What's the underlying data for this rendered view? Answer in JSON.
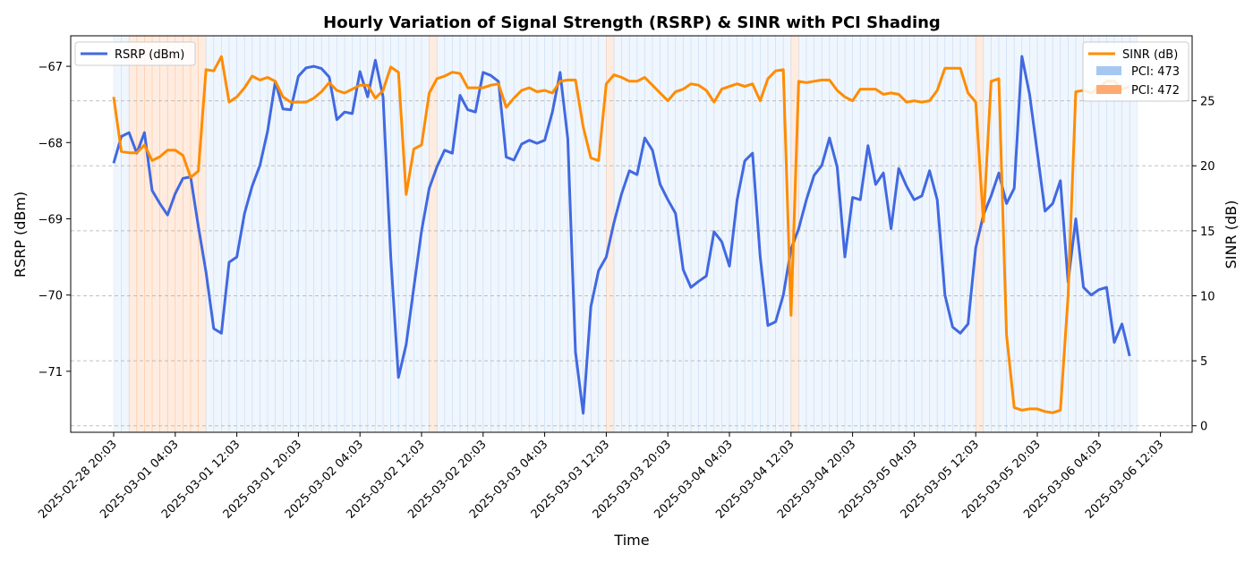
{
  "chart_data": {
    "type": "line",
    "title": "Hourly Variation of Signal Strength (RSRP) & SINR with PCI Shading",
    "xlabel": "Time",
    "ylabel_left": "RSRP (dBm)",
    "ylabel_right": "SINR (dB)",
    "x_start": "2025-02-28 20:03",
    "x_step_hours": 1,
    "x_ticks": [
      "2025-02-28 20:03",
      "2025-03-01 04:03",
      "2025-03-01 12:03",
      "2025-03-01 20:03",
      "2025-03-02 04:03",
      "2025-03-02 12:03",
      "2025-03-02 20:03",
      "2025-03-03 04:03",
      "2025-03-03 12:03",
      "2025-03-03 20:03",
      "2025-03-04 04:03",
      "2025-03-04 12:03",
      "2025-03-04 20:03",
      "2025-03-05 04:03",
      "2025-03-05 12:03",
      "2025-03-05 20:03",
      "2025-03-06 04:03",
      "2025-03-06 12:03"
    ],
    "ylim_left": [
      -71.8,
      -66.6
    ],
    "yticks_left": [
      -71,
      -70,
      -69,
      -68,
      -67
    ],
    "ylim_right": [
      -0.5,
      30
    ],
    "yticks_right": [
      0,
      5,
      10,
      15,
      20,
      25
    ],
    "grid": "horizontal dashed",
    "legend_left": "top-left",
    "legend_right": "top-right",
    "series": [
      {
        "name": "RSRP (dBm)",
        "axis": "left",
        "color": "#4169e1",
        "values": [
          -68.27,
          -67.92,
          -67.87,
          -68.14,
          -67.87,
          -68.63,
          -68.8,
          -68.95,
          -68.67,
          -68.47,
          -68.45,
          -69.1,
          -69.7,
          -70.44,
          -70.5,
          -69.57,
          -69.5,
          -68.93,
          -68.57,
          -68.3,
          -67.85,
          -67.2,
          -67.56,
          -67.57,
          -67.13,
          -67.02,
          -67.0,
          -67.03,
          -67.14,
          -67.7,
          -67.6,
          -67.62,
          -67.07,
          -67.4,
          -66.92,
          -67.4,
          -69.5,
          -71.08,
          -70.65,
          -69.9,
          -69.16,
          -68.6,
          -68.32,
          -68.1,
          -68.14,
          -67.38,
          -67.57,
          -67.6,
          -67.08,
          -67.12,
          -67.2,
          -68.19,
          -68.23,
          -68.02,
          -67.97,
          -68.01,
          -67.97,
          -67.6,
          -67.08,
          -67.95,
          -70.75,
          -71.55,
          -70.15,
          -69.68,
          -69.5,
          -69.05,
          -68.67,
          -68.37,
          -68.42,
          -67.94,
          -68.1,
          -68.55,
          -68.75,
          -68.93,
          -69.67,
          -69.9,
          -69.82,
          -69.75,
          -69.17,
          -69.3,
          -69.62,
          -68.75,
          -68.24,
          -68.14,
          -69.5,
          -70.4,
          -70.35,
          -70.0,
          -69.4,
          -69.13,
          -68.75,
          -68.43,
          -68.3,
          -67.94,
          -68.32,
          -69.5,
          -68.72,
          -68.75,
          -68.04,
          -68.55,
          -68.4,
          -69.13,
          -68.34,
          -68.57,
          -68.75,
          -68.7,
          -68.37,
          -68.75,
          -70.0,
          -70.42,
          -70.5,
          -70.38,
          -69.38,
          -68.95,
          -68.7,
          -68.4,
          -68.8,
          -68.6,
          -66.87,
          -67.37,
          -68.13,
          -68.9,
          -68.8,
          -68.5,
          -69.83,
          -69.0,
          -69.9,
          -70.0,
          -69.93,
          -69.9,
          -70.62,
          -70.38,
          -70.8
        ]
      },
      {
        "name": "SINR (dB)",
        "axis": "right",
        "color": "#ff8c00",
        "values": [
          25.3,
          21.1,
          21.0,
          21.0,
          21.6,
          20.4,
          20.7,
          21.2,
          21.2,
          20.8,
          19.1,
          19.6,
          27.4,
          27.3,
          28.4,
          24.9,
          25.3,
          26.0,
          26.9,
          26.6,
          26.8,
          26.5,
          25.3,
          24.9,
          24.9,
          24.9,
          25.2,
          25.7,
          26.4,
          25.8,
          25.6,
          25.9,
          26.2,
          26.2,
          25.2,
          25.8,
          27.6,
          27.2,
          17.8,
          21.3,
          21.6,
          25.6,
          26.7,
          26.9,
          27.2,
          27.1,
          26.0,
          26.0,
          26.0,
          26.2,
          26.3,
          24.5,
          25.2,
          25.8,
          26.0,
          25.7,
          25.8,
          25.6,
          26.5,
          26.6,
          26.6,
          23.0,
          20.6,
          20.4,
          26.3,
          27.0,
          26.8,
          26.5,
          26.5,
          26.8,
          26.2,
          25.6,
          25.0,
          25.7,
          25.9,
          26.3,
          26.2,
          25.8,
          24.9,
          25.9,
          26.1,
          26.3,
          26.1,
          26.3,
          25.0,
          26.7,
          27.3,
          27.4,
          8.5,
          26.5,
          26.4,
          26.5,
          26.6,
          26.6,
          25.8,
          25.3,
          25.0,
          25.9,
          25.9,
          25.9,
          25.5,
          25.6,
          25.5,
          24.9,
          25.0,
          24.9,
          25.0,
          25.8,
          27.5,
          27.5,
          27.5,
          25.6,
          24.9,
          15.7,
          26.5,
          26.7,
          7.0,
          1.4,
          1.2,
          1.3,
          1.3,
          1.1,
          1.0,
          1.2,
          10.0,
          25.7,
          25.8,
          25.6,
          26.0,
          26.5,
          26.5,
          25.9,
          26.1
        ]
      }
    ],
    "shading": [
      {
        "name": "PCI: 473",
        "color": "#a5c8f2"
      },
      {
        "name": "PCI: 472",
        "color": "#ffaa70"
      }
    ],
    "shading_472_hour_indices": [
      2,
      3,
      4,
      5,
      6,
      7,
      8,
      9,
      10,
      11,
      41,
      64,
      88,
      112
    ]
  }
}
